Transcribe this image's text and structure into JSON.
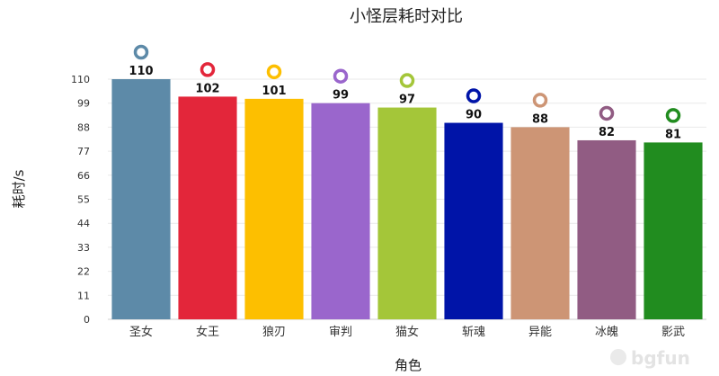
{
  "watermark": "bgfun",
  "chart_data": {
    "type": "bar",
    "title": "小怪层耗时对比",
    "xlabel": "角色",
    "ylabel": "耗时/s",
    "categories": [
      "圣女",
      "女王",
      "狼刃",
      "审判",
      "猫女",
      "斩魂",
      "异能",
      "冰魄",
      "影武"
    ],
    "values": [
      110,
      102,
      101,
      99,
      97,
      90,
      88,
      82,
      81
    ],
    "value_labels": [
      "110",
      "102",
      "101",
      "99",
      "97",
      "90",
      "88",
      "82",
      "81"
    ],
    "colors": [
      "#5d8aa8",
      "#e3263a",
      "#fdbf00",
      "#9a66cc",
      "#a4c639",
      "#0014a8",
      "#cd9575",
      "#915c83",
      "#218c1f"
    ],
    "ylim": [
      0,
      110
    ],
    "yticks": [
      "0",
      "11",
      "22",
      "33",
      "44",
      "55",
      "66",
      "77",
      "88",
      "99",
      "110"
    ],
    "grid": true,
    "legend": "none"
  }
}
